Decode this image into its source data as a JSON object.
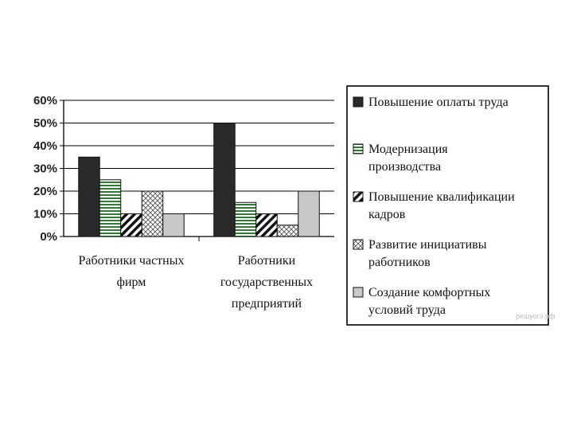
{
  "chart_data": {
    "type": "bar",
    "categories": [
      [
        "Работники частных",
        "фирм"
      ],
      [
        "Работники",
        "государственных",
        "предприятий"
      ]
    ],
    "series": [
      {
        "name": [
          "Повышение оплаты труда"
        ],
        "values": [
          35,
          50
        ],
        "pattern": "solid-dark"
      },
      {
        "name": [
          "Модернизация",
          "производства"
        ],
        "values": [
          25,
          15
        ],
        "pattern": "horizontal-green"
      },
      {
        "name": [
          "Повышение квалификации",
          "кадров"
        ],
        "values": [
          10,
          10
        ],
        "pattern": "diagonal"
      },
      {
        "name": [
          "Развитие инициативы",
          "работников"
        ],
        "values": [
          20,
          5
        ],
        "pattern": "crosshatch"
      },
      {
        "name": [
          "Создание комфортных",
          "условий труда"
        ],
        "values": [
          10,
          20
        ],
        "pattern": "solid-grey"
      }
    ],
    "y_ticks": [
      "0%",
      "10%",
      "20%",
      "30%",
      "40%",
      "50%",
      "60%"
    ],
    "ylim": [
      0,
      60
    ],
    "grid": true,
    "legend_position": "right",
    "colors": {
      "dark": "#2a2a2a",
      "green": "#2e7d32",
      "grey": "#c8c8c8",
      "axis": "#000000",
      "grid": "#000000"
    }
  },
  "watermark": "решуогэ.рф"
}
